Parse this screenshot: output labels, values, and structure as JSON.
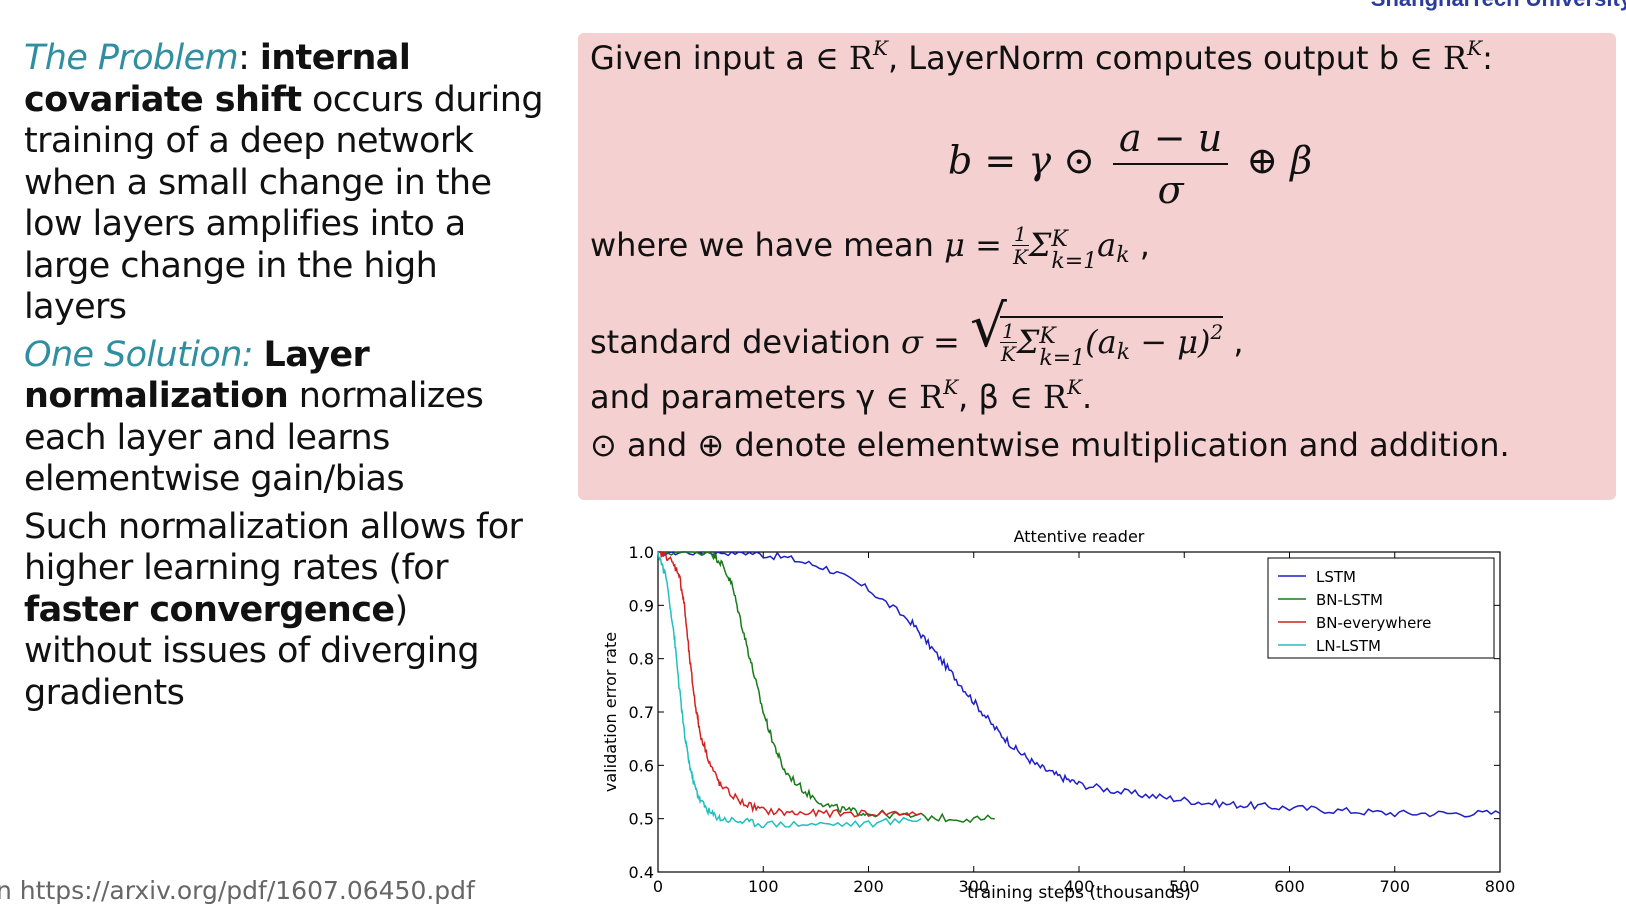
{
  "header": {
    "logo_text": "ShanghaiTech University"
  },
  "left": {
    "problem_label": "The Problem",
    "problem_colon": ":",
    "problem_bold": "internal covariate shift",
    "problem_text": " occurs during training of a deep network when a small change in the low layers amplifies into a large change in the high layers",
    "solution_label": "One Solution:",
    "solution_bold": "Layer normalization",
    "solution_text": " normalizes each layer and learns elementwise gain/bias",
    "allows_text_1": "Such normalization allows for higher learning rates (for ",
    "allows_bold": "faster convergence",
    "allows_text_2": ") without issues of diverging gradients"
  },
  "source": "n https://arxiv.org/pdf/1607.06450.pdf",
  "formula_box": {
    "line1_a": "Given input a ",
    "line1_set": "∈ R",
    "line1_sup": "K",
    "line1_b": ", LayerNorm computes output b ",
    "line1_set2": "∈ R",
    "line1_sup2": "K",
    "line1_c": ":",
    "eq_lhs": "b = γ ⊙",
    "eq_num": "a − u",
    "eq_den": "σ",
    "eq_rhs": "⊕ β",
    "mean_prefix": "where we have mean ",
    "mean_mu": "μ =",
    "mean_num": "1",
    "mean_den": "K",
    "mean_sum": "Σ",
    "mean_sup": "K",
    "mean_sub": "k=1",
    "mean_term": "a",
    "mean_term_sub": "k",
    "mean_suffix": " ,",
    "std_prefix": "standard deviation ",
    "std_sigma": "σ =",
    "std_radical": "√",
    "std_num": "1",
    "std_den": "K",
    "std_sum": "Σ",
    "std_sup": "K",
    "std_sub": "k=1",
    "std_term": "(a",
    "std_term_sub": "k",
    "std_term2": " − μ)",
    "std_pow": "2",
    "std_suffix": " ,",
    "params_a": "and parameters γ ",
    "params_set1": "∈ R",
    "params_sup1": "K",
    "params_b": ", β ",
    "params_set2": "∈ R",
    "params_sup2": "K",
    "params_c": ".",
    "ops_line": "⊙ and ⊕ denote elementwise multiplication and addition."
  },
  "chart_data": {
    "type": "line",
    "title": "Attentive reader",
    "xlabel": "training steps (thousands)",
    "ylabel": "validation error rate",
    "xlim": [
      0,
      800
    ],
    "ylim": [
      0.4,
      1.0
    ],
    "xticks": [
      "0",
      "100",
      "200",
      "300",
      "400",
      "500",
      "600",
      "700",
      "800"
    ],
    "yticks": [
      "0.4",
      "0.5",
      "0.6",
      "0.7",
      "0.8",
      "0.9",
      "1.0"
    ],
    "legend_position": "top-right",
    "series": [
      {
        "name": "LSTM",
        "color": "#1f1fc8",
        "x": [
          0,
          40,
          80,
          120,
          160,
          200,
          240,
          260,
          280,
          300,
          320,
          340,
          360,
          380,
          400,
          440,
          480,
          520,
          560,
          600,
          650,
          700,
          750,
          800
        ],
        "y": [
          1.0,
          1.0,
          1.0,
          0.99,
          0.97,
          0.93,
          0.87,
          0.82,
          0.77,
          0.72,
          0.67,
          0.63,
          0.6,
          0.58,
          0.565,
          0.55,
          0.54,
          0.53,
          0.525,
          0.52,
          0.515,
          0.51,
          0.51,
          0.51
        ]
      },
      {
        "name": "BN-LSTM",
        "color": "#1a7a1a",
        "x": [
          0,
          50,
          60,
          70,
          80,
          90,
          100,
          110,
          120,
          140,
          160,
          180,
          200,
          240,
          280,
          320
        ],
        "y": [
          1.0,
          1.0,
          0.98,
          0.94,
          0.86,
          0.78,
          0.7,
          0.64,
          0.59,
          0.55,
          0.525,
          0.515,
          0.51,
          0.505,
          0.5,
          0.5
        ]
      },
      {
        "name": "BN-everywhere",
        "color": "#d42020",
        "x": [
          0,
          10,
          20,
          25,
          30,
          35,
          40,
          50,
          60,
          80,
          100,
          130,
          160,
          200,
          250
        ],
        "y": [
          1.0,
          0.99,
          0.96,
          0.9,
          0.8,
          0.72,
          0.66,
          0.6,
          0.56,
          0.53,
          0.515,
          0.51,
          0.51,
          0.51,
          0.51
        ]
      },
      {
        "name": "LN-LSTM",
        "color": "#20c0c0",
        "x": [
          0,
          8,
          15,
          20,
          25,
          30,
          35,
          40,
          50,
          60,
          80,
          100,
          150,
          200,
          250
        ],
        "y": [
          1.0,
          0.95,
          0.85,
          0.75,
          0.66,
          0.6,
          0.56,
          0.535,
          0.51,
          0.5,
          0.495,
          0.49,
          0.49,
          0.49,
          0.5
        ]
      }
    ]
  }
}
